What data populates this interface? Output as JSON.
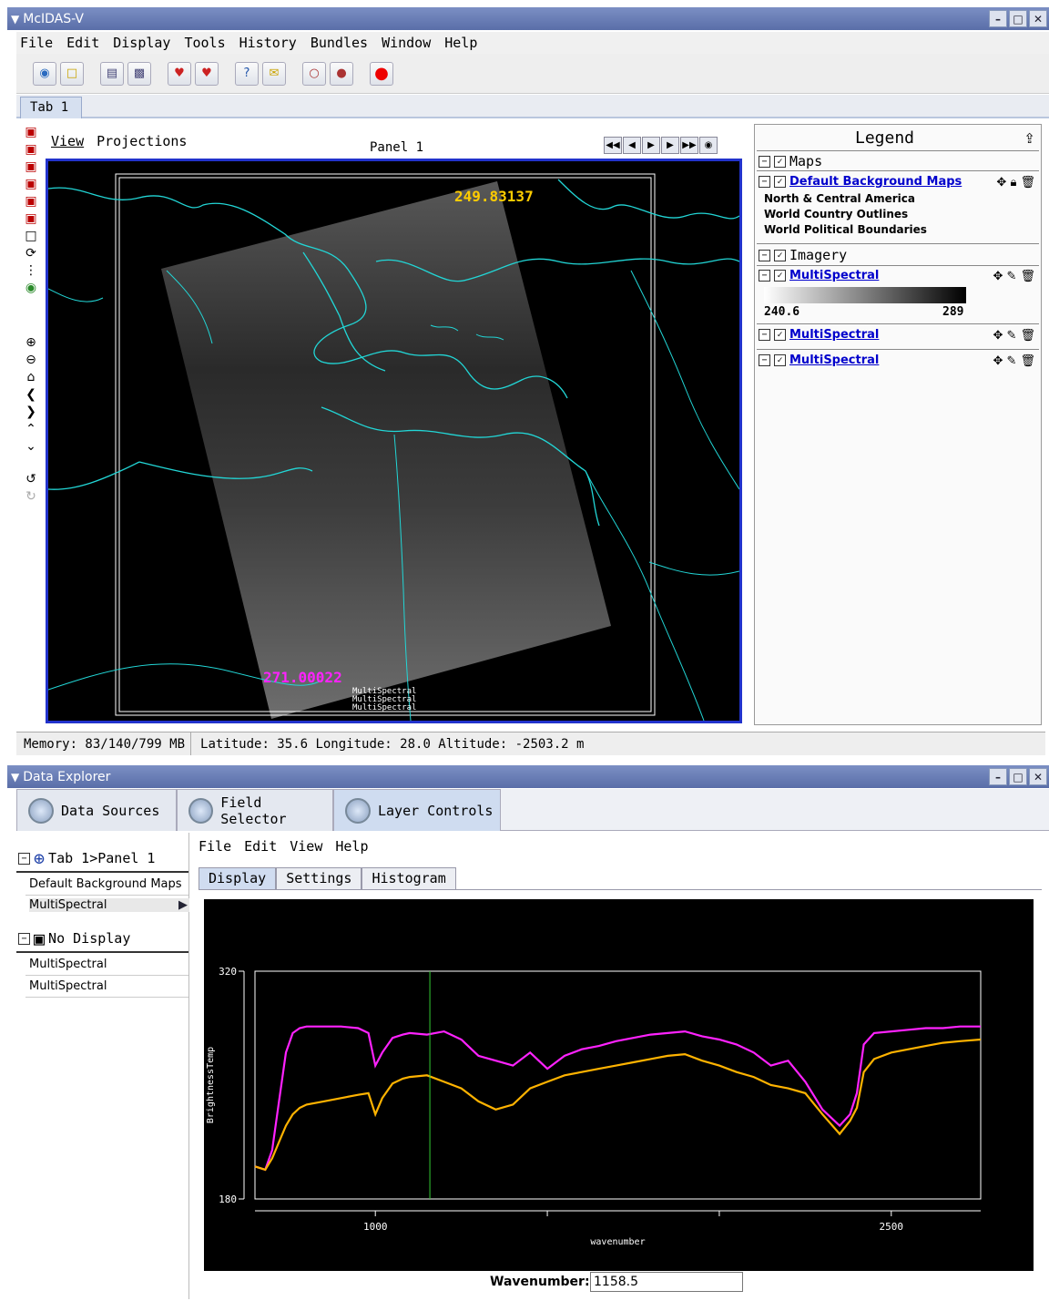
{
  "main_window": {
    "title": "McIDAS-V",
    "menu": [
      "File",
      "Edit",
      "Display",
      "Tools",
      "History",
      "Bundles",
      "Window",
      "Help"
    ],
    "tab": "Tab 1",
    "view_menu": [
      "View",
      "Projections"
    ],
    "panel_title": "Panel 1",
    "map": {
      "probe_top": "249.83137",
      "probe_bottom": "271.00022",
      "layer_labels": [
        "MultiSpectral",
        "MultiSpectral",
        "MultiSpectral"
      ]
    },
    "legend": {
      "title": "Legend",
      "maps_section": "Maps",
      "maps_layer": "Default Background Maps",
      "maps_items": [
        "North & Central America",
        "World Country Outlines",
        "World Political Boundaries"
      ],
      "imagery_section": "Imagery",
      "imagery_layers": [
        "MultiSpectral",
        "MultiSpectral",
        "MultiSpectral"
      ],
      "colorbar_min": "240.6",
      "colorbar_max": "289"
    },
    "status": {
      "memory": "Memory: 83/140/799 MB",
      "location": "Latitude:  35.6 Longitude:  28.0 Altitude: -2503.2 m"
    }
  },
  "data_explorer": {
    "title": "Data Explorer",
    "tabs": [
      "Data Sources",
      "Field Selector",
      "Layer Controls"
    ],
    "tree": {
      "panel_node": "Tab 1>Panel 1",
      "panel_items": [
        "Default Background Maps",
        "MultiSpectral"
      ],
      "nodisplay_node": "No Display",
      "nodisplay_items": [
        "MultiSpectral",
        "MultiSpectral"
      ]
    },
    "menu": [
      "File",
      "Edit",
      "View",
      "Help"
    ],
    "subtabs": [
      "Display",
      "Settings",
      "Histogram"
    ],
    "wavenumber_label": "Wavenumber:",
    "wavenumber_value": "1158.5"
  },
  "chart_data": {
    "type": "line",
    "xlabel": "wavenumber",
    "ylabel": "BrightnessTemp",
    "xlim": [
      650,
      2760
    ],
    "ylim": [
      180,
      320
    ],
    "x_ticks": [
      "1000",
      "2500"
    ],
    "y_ticks": [
      "320",
      "180"
    ],
    "cursor_x": 1158.5,
    "series": [
      {
        "color": "#ff22ff",
        "x": [
          650,
          680,
          700,
          720,
          740,
          760,
          780,
          800,
          850,
          900,
          950,
          980,
          1000,
          1020,
          1050,
          1080,
          1100,
          1150,
          1200,
          1250,
          1300,
          1350,
          1400,
          1450,
          1500,
          1550,
          1600,
          1650,
          1700,
          1750,
          1800,
          1850,
          1900,
          1950,
          2000,
          2050,
          2100,
          2150,
          2200,
          2250,
          2300,
          2350,
          2380,
          2400,
          2420,
          2450,
          2500,
          2550,
          2600,
          2650,
          2700,
          2760
        ],
        "values": [
          200,
          198,
          210,
          240,
          270,
          282,
          285,
          286,
          286,
          286,
          285,
          282,
          262,
          270,
          279,
          281,
          282,
          281,
          283,
          278,
          268,
          265,
          262,
          270,
          260,
          268,
          272,
          274,
          277,
          279,
          281,
          282,
          283,
          280,
          278,
          275,
          270,
          262,
          265,
          252,
          235,
          225,
          232,
          245,
          275,
          282,
          283,
          284,
          285,
          285,
          286,
          286
        ]
      },
      {
        "color": "#ffb300",
        "x": [
          650,
          680,
          700,
          720,
          740,
          760,
          780,
          800,
          850,
          900,
          950,
          980,
          1000,
          1020,
          1050,
          1080,
          1100,
          1150,
          1200,
          1250,
          1300,
          1350,
          1400,
          1450,
          1500,
          1550,
          1600,
          1650,
          1700,
          1750,
          1800,
          1850,
          1900,
          1950,
          2000,
          2050,
          2100,
          2150,
          2200,
          2250,
          2300,
          2350,
          2380,
          2400,
          2420,
          2450,
          2500,
          2550,
          2600,
          2650,
          2700,
          2760
        ],
        "values": [
          200,
          198,
          205,
          215,
          225,
          232,
          236,
          238,
          240,
          242,
          244,
          245,
          232,
          242,
          251,
          254,
          255,
          256,
          252,
          248,
          240,
          235,
          238,
          248,
          252,
          256,
          258,
          260,
          262,
          264,
          266,
          268,
          269,
          265,
          262,
          258,
          255,
          250,
          248,
          245,
          232,
          220,
          228,
          236,
          258,
          266,
          270,
          272,
          274,
          276,
          277,
          278
        ]
      }
    ]
  }
}
